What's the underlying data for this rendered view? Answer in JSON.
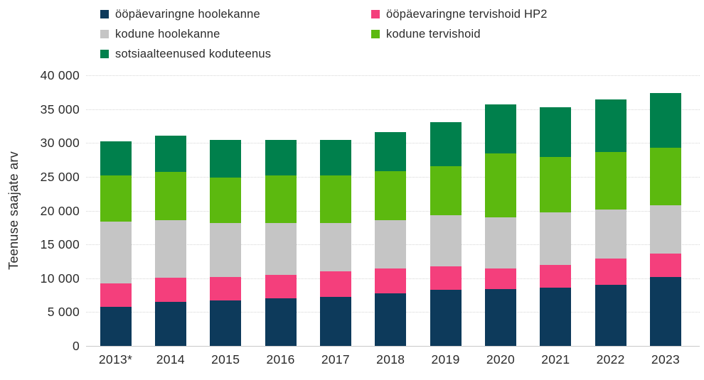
{
  "chart_data": {
    "type": "bar",
    "stacked": true,
    "title": "",
    "xlabel": "",
    "ylabel": "Teenuse saajate arv",
    "ylim": [
      0,
      40000
    ],
    "ytick_step": 5000,
    "ytick_labels": [
      "0",
      "5 000",
      "10 000",
      "15 000",
      "20 000",
      "25 000",
      "30 000",
      "35 000",
      "40 000"
    ],
    "grid": "horizontal-dotted",
    "legend_position": "top-two-columns",
    "categories": [
      "2013*",
      "2014",
      "2015",
      "2016",
      "2017",
      "2018",
      "2019",
      "2020",
      "2021",
      "2022",
      "2023"
    ],
    "series": [
      {
        "name": "ööpäevaringne hoolekanne",
        "color": "#0d3a5b",
        "values": [
          5800,
          6500,
          6700,
          7000,
          7300,
          7800,
          8300,
          8400,
          8600,
          9000,
          10200
        ]
      },
      {
        "name": "ööpäevaringne tervishoid HP2",
        "color": "#f43f7c",
        "values": [
          3500,
          3600,
          3500,
          3500,
          3700,
          3600,
          3500,
          3100,
          3400,
          3900,
          3400
        ]
      },
      {
        "name": "kodune hoolekanne",
        "color": "#c5c5c5",
        "values": [
          9100,
          8500,
          8000,
          7700,
          7200,
          7200,
          7500,
          7500,
          7700,
          7300,
          7200
        ]
      },
      {
        "name": "kodune tervishoid",
        "color": "#5cb90f",
        "values": [
          6800,
          7100,
          6700,
          7000,
          7000,
          7200,
          7300,
          9500,
          8200,
          8500,
          8500
        ]
      },
      {
        "name": "sotsiaalteenused koduteenus",
        "color": "#00804c",
        "values": [
          5000,
          5400,
          5600,
          5300,
          5300,
          5800,
          6500,
          7200,
          7400,
          7700,
          8100
        ]
      }
    ],
    "totals": [
      30200,
      31100,
      30500,
      30500,
      30500,
      31600,
      33100,
      35700,
      35300,
      36400,
      37400
    ]
  }
}
